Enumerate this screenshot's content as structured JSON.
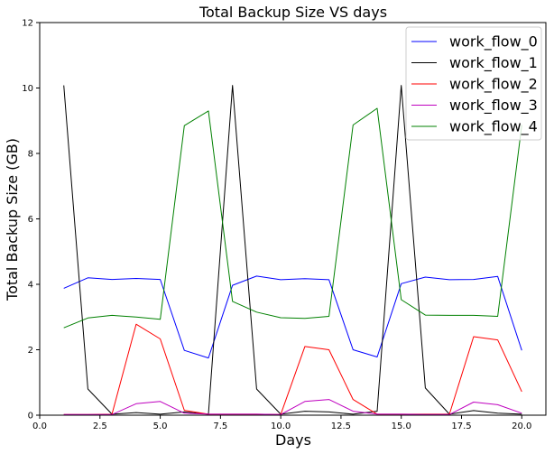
{
  "chart_data": {
    "type": "line",
    "title": "Total Backup Size   VS   days",
    "xlabel": "Days",
    "ylabel": "Total Backup Size (GB)",
    "xlim": [
      0.0,
      21.0
    ],
    "ylim": [
      0,
      12
    ],
    "xticks": [
      0.0,
      2.5,
      5.0,
      7.5,
      10.0,
      12.5,
      15.0,
      17.5,
      20.0
    ],
    "xtick_labels": [
      "0.0",
      "2.5",
      "5.0",
      "7.5",
      "10.0",
      "12.5",
      "15.0",
      "17.5",
      "20.0"
    ],
    "yticks": [
      0,
      2,
      4,
      6,
      8,
      10,
      12
    ],
    "ytick_labels": [
      "0",
      "2",
      "4",
      "6",
      "8",
      "10",
      "12"
    ],
    "grid": false,
    "legend_position": "top-right",
    "x": [
      1,
      2,
      3,
      4,
      5,
      6,
      7,
      8,
      9,
      10,
      11,
      12,
      13,
      14,
      15,
      16,
      17,
      18,
      19,
      20
    ],
    "series": [
      {
        "name": "work_flow_0",
        "color": "#0000ff",
        "values": [
          3.88,
          4.2,
          4.15,
          4.18,
          4.15,
          1.98,
          1.75,
          3.97,
          4.25,
          4.14,
          4.17,
          4.14,
          2.0,
          1.78,
          4.02,
          4.22,
          4.14,
          4.15,
          4.24,
          1.98
        ]
      },
      {
        "name": "work_flow_1",
        "color": "#000000",
        "values": [
          10.08,
          0.8,
          0.03,
          0.08,
          0.03,
          0.1,
          0.03,
          10.08,
          0.8,
          0.03,
          0.12,
          0.1,
          0.03,
          0.12,
          10.08,
          0.83,
          0.03,
          0.14,
          0.06,
          0.03
        ]
      },
      {
        "name": "work_flow_2",
        "color": "#ff0000",
        "values": [
          0.02,
          0.02,
          0.03,
          2.78,
          2.33,
          0.15,
          0.03,
          0.03,
          0.03,
          0.02,
          2.1,
          2.0,
          0.48,
          0.03,
          0.03,
          0.03,
          0.03,
          2.4,
          2.3,
          0.72
        ]
      },
      {
        "name": "work_flow_3",
        "color": "#bf00bf",
        "values": [
          0.02,
          0.02,
          0.02,
          0.35,
          0.42,
          0.06,
          0.03,
          0.03,
          0.03,
          0.02,
          0.42,
          0.48,
          0.12,
          0.03,
          0.03,
          0.02,
          0.02,
          0.4,
          0.32,
          0.06
        ]
      },
      {
        "name": "work_flow_4",
        "color": "#008000",
        "values": [
          2.67,
          2.97,
          3.05,
          3.0,
          2.93,
          8.85,
          9.3,
          3.48,
          3.15,
          2.98,
          2.96,
          3.02,
          8.87,
          9.38,
          3.53,
          3.06,
          3.05,
          3.05,
          3.02,
          8.87
        ]
      }
    ]
  }
}
